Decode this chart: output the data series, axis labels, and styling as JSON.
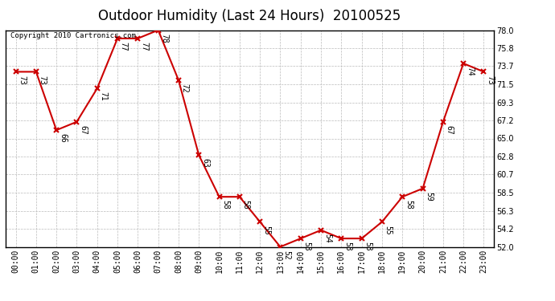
{
  "title": "Outdoor Humidity (Last 24 Hours)  20100525",
  "copyright_text": "Copyright 2010 Cartronics.com",
  "hours": [
    "00:00",
    "01:00",
    "02:00",
    "03:00",
    "04:00",
    "05:00",
    "06:00",
    "07:00",
    "08:00",
    "09:00",
    "10:00",
    "11:00",
    "12:00",
    "13:00",
    "14:00",
    "15:00",
    "16:00",
    "17:00",
    "18:00",
    "19:00",
    "20:00",
    "21:00",
    "22:00",
    "23:00"
  ],
  "values": [
    73,
    73,
    66,
    67,
    71,
    77,
    77,
    78,
    72,
    63,
    58,
    58,
    55,
    52,
    53,
    54,
    53,
    53,
    55,
    58,
    59,
    67,
    74,
    73
  ],
  "ylim_min": 52.0,
  "ylim_max": 78.0,
  "yticks": [
    52.0,
    54.2,
    56.3,
    58.5,
    60.7,
    62.8,
    65.0,
    67.2,
    69.3,
    71.5,
    73.7,
    75.8,
    78.0
  ],
  "line_color": "#cc0000",
  "marker_color": "#cc0000",
  "bg_color": "#ffffff",
  "plot_bg_color": "#ffffff",
  "grid_color": "#bbbbbb",
  "title_fontsize": 12,
  "label_fontsize": 7,
  "tick_fontsize": 7,
  "copyright_fontsize": 6.5
}
